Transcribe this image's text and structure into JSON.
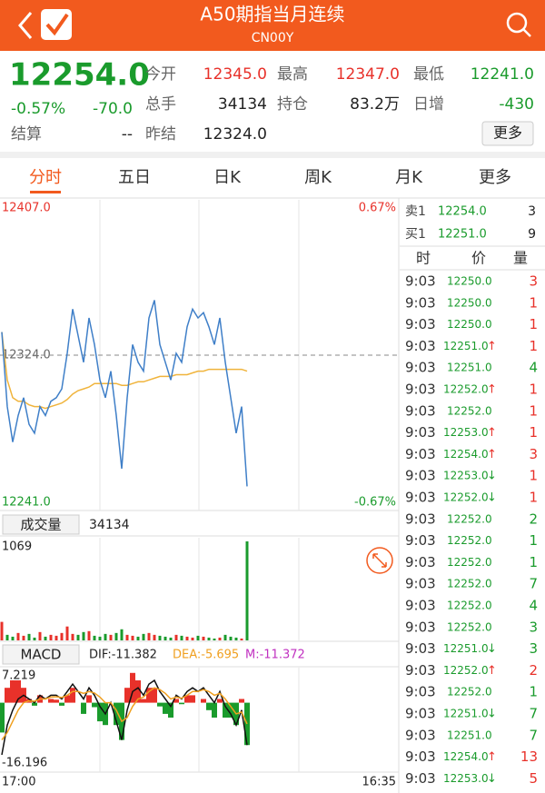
{
  "header": {
    "title": "A50期指当月连续",
    "code": "CN00Y"
  },
  "quote": {
    "price": "12254.0",
    "change_pct": "-0.57%",
    "change": "-70.0",
    "fields": [
      {
        "label": "今开",
        "value": "12345.0",
        "color": "#e8312a"
      },
      {
        "label": "最高",
        "value": "12347.0",
        "color": "#e8312a"
      },
      {
        "label": "最低",
        "value": "12241.0",
        "color": "#1a9b2c"
      },
      {
        "label": "总手",
        "value": "34134",
        "color": "#222222"
      },
      {
        "label": "持仓",
        "value": "83.2万",
        "color": "#222222"
      },
      {
        "label": "日增",
        "value": "-430",
        "color": "#1a9b2c"
      },
      {
        "label": "结算",
        "value": "--",
        "color": "#222222"
      },
      {
        "label": "昨结",
        "value": "12324.0",
        "color": "#222222"
      }
    ],
    "more_button": "更多"
  },
  "tabs": {
    "items": [
      "分时",
      "五日",
      "日K",
      "周K",
      "月K",
      "更多"
    ],
    "active": 0
  },
  "intraday": {
    "ylim": [
      12241,
      12407
    ],
    "yticks": [
      {
        "value": 12407,
        "label": "12407.0"
      },
      {
        "value": 12324,
        "label": "12324.0"
      },
      {
        "value": 12241,
        "label": "12241.0"
      }
    ],
    "y2lim": [
      -0.67,
      0.67
    ],
    "y2ticks": [
      {
        "value": 0.67,
        "label": "0.67%"
      },
      {
        "value": -0.67,
        "label": "-0.67%"
      }
    ],
    "price": [
      12337,
      12295,
      12275,
      12290,
      12300,
      12285,
      12280,
      12295,
      12290,
      12298,
      12300,
      12305,
      12325,
      12350,
      12335,
      12320,
      12345,
      12330,
      12310,
      12300,
      12315,
      12290,
      12260,
      12300,
      12330,
      12320,
      12315,
      12345,
      12355,
      12330,
      12320,
      12310,
      12325,
      12320,
      12340,
      12350,
      12345,
      12348,
      12340,
      12330,
      12345,
      12320,
      12300,
      12280,
      12295,
      12250
    ],
    "average": [
      12337,
      12310,
      12300,
      12298,
      12298,
      12296,
      12295,
      12295,
      12294,
      12295,
      12296,
      12297,
      12299,
      12302,
      12304,
      12305,
      12306,
      12308,
      12308,
      12308,
      12308,
      12308,
      12307,
      12307,
      12308,
      12309,
      12309,
      12310,
      12311,
      12312,
      12312,
      12312,
      12313,
      12313,
      12313,
      12314,
      12315,
      12315,
      12316,
      12316,
      12316,
      12316,
      12316,
      12316,
      12316,
      12315
    ]
  },
  "volume": {
    "button": "成交量",
    "total": "34134",
    "ylim": [
      0,
      1069
    ],
    "yticks": [
      1069
    ],
    "values": [
      200,
      60,
      40,
      80,
      50,
      70,
      30,
      90,
      40,
      60,
      50,
      80,
      150,
      70,
      60,
      90,
      100,
      50,
      40,
      70,
      60,
      80,
      120,
      60,
      50,
      40,
      70,
      80,
      60,
      50,
      40,
      30,
      60,
      50,
      40,
      30,
      50,
      40,
      30,
      20,
      30,
      60,
      40,
      30,
      20,
      1069
    ]
  },
  "macd": {
    "title": "MACD",
    "dif_label": "DIF:-11.382",
    "dea_label": "DEA:-5.695",
    "m_label": "M:-11.372",
    "ylim": [
      -16.196,
      7.219
    ],
    "yticks": [
      7.219,
      -16.196
    ],
    "dif": [
      -14,
      -6,
      -2,
      1,
      2,
      1,
      0,
      2,
      1,
      2,
      2,
      1,
      3,
      5,
      3,
      1,
      4,
      2,
      -1,
      -3,
      0,
      -5,
      -10,
      -2,
      3,
      4,
      2,
      5,
      6,
      3,
      1,
      -1,
      2,
      1,
      3,
      4,
      3,
      4,
      2,
      0,
      3,
      -1,
      -3,
      -6,
      -2,
      -11.382
    ],
    "dea": [
      -10,
      -8,
      -5,
      -2,
      0,
      0.5,
      0.4,
      1,
      1,
      1.5,
      1.6,
      1.4,
      2,
      3,
      3,
      2.5,
      3,
      2.6,
      1.5,
      0,
      0,
      -2,
      -5,
      -4,
      -1,
      1,
      1.5,
      3,
      4,
      3.5,
      2.5,
      1,
      1.5,
      1.2,
      2,
      3,
      3,
      3.5,
      3,
      2,
      2.5,
      1,
      -1,
      -3,
      -2.5,
      -5.695
    ],
    "m": [
      -8,
      4,
      6,
      6,
      4,
      1,
      -0.8,
      2,
      0,
      1,
      0.8,
      -0.8,
      2,
      4,
      0,
      -3,
      2,
      -1.2,
      -5,
      -6,
      0,
      -6,
      -10,
      4,
      8,
      6,
      1,
      4,
      4,
      -1,
      -3,
      -4,
      1,
      -0.4,
      2,
      2,
      0,
      1,
      -2,
      -4,
      1,
      -4,
      -4,
      -6,
      1,
      -11.372
    ]
  },
  "time_axis": {
    "start": "17:00",
    "end": "16:35"
  },
  "order_book": {
    "ask": {
      "label": "卖1",
      "price": "12254.0",
      "volume": 3
    },
    "bid": {
      "label": "买1",
      "price": "12251.0",
      "volume": 9
    }
  },
  "trades_header": [
    "时",
    "价",
    "量"
  ],
  "trades": [
    {
      "time": "9:03",
      "price": "12250.0",
      "arrow": null,
      "volume": 3,
      "color": "#e8312a"
    },
    {
      "time": "9:03",
      "price": "12250.0",
      "arrow": null,
      "volume": 1,
      "color": "#e8312a"
    },
    {
      "time": "9:03",
      "price": "12250.0",
      "arrow": null,
      "volume": 1,
      "color": "#e8312a"
    },
    {
      "time": "9:03",
      "price": "12251.0",
      "arrow": "↑",
      "volume": 1,
      "color": "#e8312a"
    },
    {
      "time": "9:03",
      "price": "12251.0",
      "arrow": null,
      "volume": 4,
      "color": "#1a9b2c"
    },
    {
      "time": "9:03",
      "price": "12252.0",
      "arrow": "↑",
      "volume": 1,
      "color": "#e8312a"
    },
    {
      "time": "9:03",
      "price": "12252.0",
      "arrow": null,
      "volume": 1,
      "color": "#e8312a"
    },
    {
      "time": "9:03",
      "price": "12253.0",
      "arrow": "↑",
      "volume": 1,
      "color": "#e8312a"
    },
    {
      "time": "9:03",
      "price": "12254.0",
      "arrow": "↑",
      "volume": 3,
      "color": "#e8312a"
    },
    {
      "time": "9:03",
      "price": "12253.0",
      "arrow": "↓",
      "volume": 1,
      "color": "#e8312a"
    },
    {
      "time": "9:03",
      "price": "12252.0",
      "arrow": "↓",
      "volume": 1,
      "color": "#e8312a"
    },
    {
      "time": "9:03",
      "price": "12252.0",
      "arrow": null,
      "volume": 2,
      "color": "#1a9b2c"
    },
    {
      "time": "9:03",
      "price": "12252.0",
      "arrow": null,
      "volume": 1,
      "color": "#1a9b2c"
    },
    {
      "time": "9:03",
      "price": "12252.0",
      "arrow": null,
      "volume": 1,
      "color": "#1a9b2c"
    },
    {
      "time": "9:03",
      "price": "12252.0",
      "arrow": null,
      "volume": 7,
      "color": "#1a9b2c"
    },
    {
      "time": "9:03",
      "price": "12252.0",
      "arrow": null,
      "volume": 4,
      "color": "#1a9b2c"
    },
    {
      "time": "9:03",
      "price": "12252.0",
      "arrow": null,
      "volume": 3,
      "color": "#1a9b2c"
    },
    {
      "time": "9:03",
      "price": "12251.0",
      "arrow": "↓",
      "volume": 3,
      "color": "#1a9b2c"
    },
    {
      "time": "9:03",
      "price": "12252.0",
      "arrow": "↑",
      "volume": 2,
      "color": "#e8312a"
    },
    {
      "time": "9:03",
      "price": "12252.0",
      "arrow": null,
      "volume": 1,
      "color": "#1a9b2c"
    },
    {
      "time": "9:03",
      "price": "12251.0",
      "arrow": "↓",
      "volume": 7,
      "color": "#1a9b2c"
    },
    {
      "time": "9:03",
      "price": "12251.0",
      "arrow": null,
      "volume": 7,
      "color": "#1a9b2c"
    },
    {
      "time": "9:03",
      "price": "12254.0",
      "arrow": "↑",
      "volume": 13,
      "color": "#e8312a"
    },
    {
      "time": "9:03",
      "price": "12253.0",
      "arrow": "↓",
      "volume": 5,
      "color": "#e8312a"
    }
  ]
}
